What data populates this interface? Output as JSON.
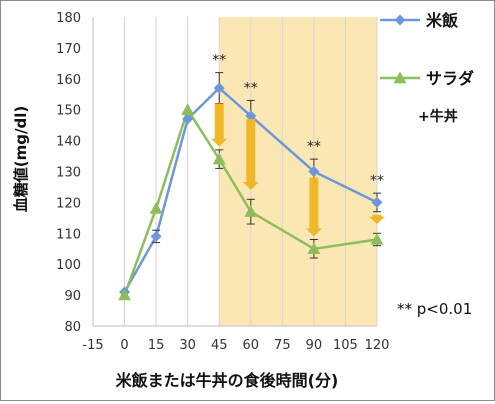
{
  "chart_data": {
    "type": "line",
    "title": "",
    "xlabel": "米飯または牛丼の食後時間(分)",
    "ylabel": "血糖値(mg/dl)",
    "x_ticks": [
      -15,
      0,
      15,
      30,
      45,
      60,
      75,
      90,
      105,
      120
    ],
    "y_ticks": [
      80,
      90,
      100,
      110,
      120,
      130,
      140,
      150,
      160,
      170,
      180
    ],
    "xlim": [
      -15,
      120
    ],
    "ylim": [
      80,
      180
    ],
    "grid": "vertical",
    "highlight_range": [
      45,
      120
    ],
    "highlight_color": "#fbe7b4",
    "x": [
      0,
      15,
      30,
      45,
      60,
      90,
      120
    ],
    "series": [
      {
        "name": "米飯",
        "color": "#6d97d9",
        "marker": "diamond",
        "values": [
          91,
          109,
          147,
          157,
          148,
          130,
          120
        ],
        "errors": [
          null,
          2,
          null,
          5,
          5,
          4,
          3
        ]
      },
      {
        "name": "サラダ+牛丼",
        "color": "#8ebd5c",
        "marker": "triangle",
        "values": [
          90,
          118,
          150,
          134,
          117,
          105,
          108
        ],
        "errors": [
          null,
          null,
          null,
          3,
          4,
          3,
          2
        ]
      }
    ],
    "significance": {
      "label": "**",
      "x": [
        45,
        60,
        90,
        120
      ]
    },
    "arrows": {
      "color": "#f0b828",
      "from_to": [
        [
          45,
          152,
          138
        ],
        [
          60,
          147,
          124
        ],
        [
          90,
          128,
          109
        ],
        [
          120,
          116,
          113
        ]
      ]
    },
    "note": "** p<0.01"
  }
}
